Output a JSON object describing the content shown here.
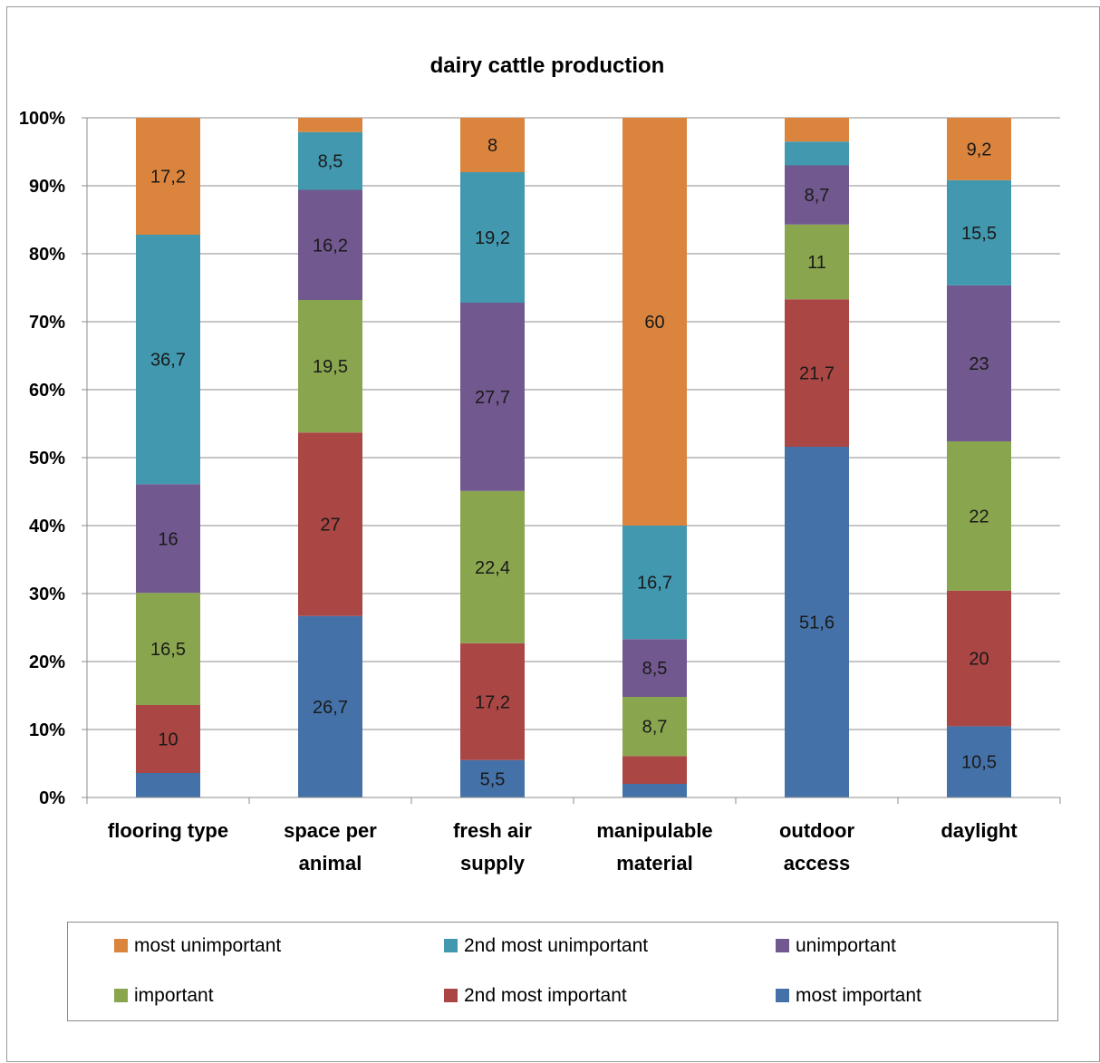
{
  "chart_data": {
    "type": "bar",
    "stacked": true,
    "percent_stacked": true,
    "title": "dairy cattle production",
    "categories": [
      [
        "flooring type"
      ],
      [
        "space per",
        "animal"
      ],
      [
        "fresh air",
        "supply"
      ],
      [
        "manipulable",
        "material"
      ],
      [
        "outdoor",
        "access"
      ],
      [
        "daylight"
      ]
    ],
    "ylim": [
      0,
      100
    ],
    "yticks": [
      "0%",
      "10%",
      "20%",
      "30%",
      "40%",
      "50%",
      "60%",
      "70%",
      "80%",
      "90%",
      "100%"
    ],
    "grid": true,
    "legend_position": "bottom",
    "series": [
      {
        "name": "most important",
        "color": "#4472a8",
        "values": [
          3.6,
          26.7,
          5.5,
          2.0,
          51.6,
          10.5
        ],
        "labels": [
          "",
          "26,7",
          "5,5",
          "",
          "51,6",
          "10,5"
        ]
      },
      {
        "name": "2nd most important",
        "color": "#aa4643",
        "values": [
          10,
          27,
          17.2,
          4.1,
          21.7,
          20
        ],
        "labels": [
          "10",
          "27",
          "17,2",
          "",
          "21,7",
          "20"
        ]
      },
      {
        "name": "important",
        "color": "#89a54e",
        "values": [
          16.5,
          19.5,
          22.4,
          8.7,
          11,
          22
        ],
        "labels": [
          "16,5",
          "19,5",
          "22,4",
          "8,7",
          "11",
          "22"
        ]
      },
      {
        "name": "unimportant",
        "color": "#71588f",
        "values": [
          16,
          16.2,
          27.7,
          8.5,
          8.7,
          23
        ],
        "labels": [
          "16",
          "16,2",
          "27,7",
          "8,5",
          "8,7",
          "23"
        ]
      },
      {
        "name": "2nd most unimportant",
        "color": "#4198af",
        "values": [
          36.7,
          8.5,
          19.2,
          16.7,
          3.5,
          15.5
        ],
        "labels": [
          "36,7",
          "8,5",
          "19,2",
          "16,7",
          "",
          "15,5"
        ]
      },
      {
        "name": "most unimportant",
        "color": "#db843d",
        "values": [
          17.2,
          2.1,
          8,
          60,
          3.5,
          9.2
        ],
        "labels": [
          "17,2",
          "",
          "8",
          "60",
          "",
          "9,2"
        ]
      }
    ],
    "legend_order": [
      "most unimportant",
      "2nd most unimportant",
      "unimportant",
      "important",
      "2nd most important",
      "most important"
    ]
  }
}
